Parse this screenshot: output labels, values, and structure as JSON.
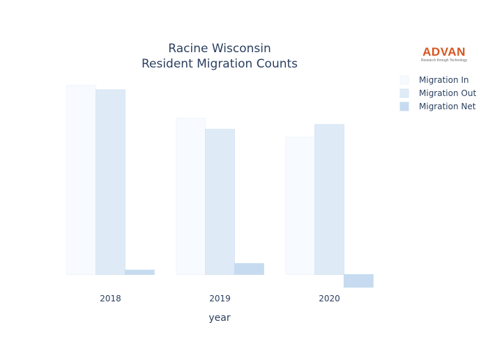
{
  "chart_data": {
    "type": "bar",
    "title": [
      "Racine Wisconsin",
      "Resident Migration Counts"
    ],
    "xlabel": "year",
    "ylabel": "",
    "categories": [
      "2018",
      "2019",
      "2020"
    ],
    "series": [
      {
        "name": "Migration In",
        "values": [
          6370,
          5260,
          4620
        ],
        "color": "#f7fbff",
        "stroke": "#eef4fb"
      },
      {
        "name": "Migration Out",
        "values": [
          6220,
          4890,
          5050
        ],
        "color": "#deebf7",
        "stroke": "#d6e5f4"
      },
      {
        "name": "Migration Net",
        "values": [
          150,
          370,
          -430
        ],
        "color": "#c6dbef",
        "stroke": "#c6dbef"
      }
    ],
    "ylim": [
      -600,
      6900
    ],
    "grid": false,
    "yticks_visible": false,
    "legend": "top-right"
  },
  "logo": {
    "brand": "ADVAN",
    "tagline": "Research through Technology"
  }
}
